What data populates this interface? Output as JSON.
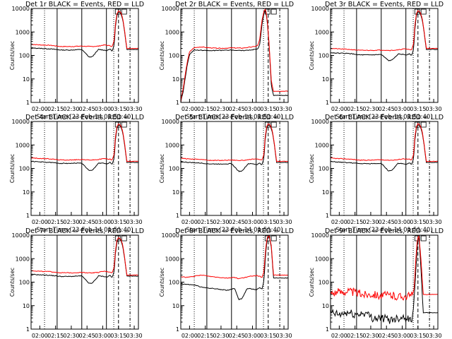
{
  "chart_data": {
    "type": "line",
    "xtick_labels": [
      "02:00",
      "02:15",
      "02:30",
      "02:45",
      "03:00",
      "03:15",
      "03:30"
    ],
    "xtick_minutes": [
      120,
      135,
      150,
      165,
      180,
      195,
      210
    ],
    "xlim_minutes": [
      111.67,
      214
    ],
    "ylim": [
      1,
      10000
    ],
    "yscale": "log",
    "ytick_labels": [
      "1",
      "10",
      "100",
      "1000",
      "10000"
    ],
    "ytick_values": [
      1,
      10,
      100,
      1000,
      10000
    ],
    "ylabel": "Counts/sec",
    "xlabel": "Start Time (23-Feb-14 01:51:40)",
    "colors": {
      "events": "#000000",
      "lld": "#ff0000"
    },
    "panels": [
      {
        "title": "Det 1r BLACK = Events, RED = LLD",
        "type": "A",
        "times": [
          111.67,
          120,
          130,
          140,
          150,
          160,
          167,
          170,
          176,
          181,
          184,
          187,
          189,
          191,
          192,
          193.5,
          195,
          197,
          199,
          201,
          203
        ],
        "events": [
          210,
          200,
          190,
          170,
          170,
          180,
          85,
          88,
          180,
          170,
          160,
          190,
          150,
          300,
          1500,
          5000,
          7000,
          6500,
          3500,
          900,
          180
        ],
        "lld": [
          300,
          280,
          270,
          240,
          240,
          250,
          240,
          240,
          250,
          280,
          270,
          260,
          240,
          450,
          2000,
          6000,
          8000,
          7000,
          4000,
          1000,
          200
        ]
      },
      {
        "title": "Det 2r BLACK = Events, RED = LLD",
        "type": "B",
        "times": [
          111.67,
          112,
          114,
          116,
          118,
          120,
          124,
          130,
          140,
          150,
          160,
          170,
          180,
          185,
          187,
          189,
          191,
          192.5,
          194,
          196,
          198,
          200
        ],
        "events": [
          1,
          1.3,
          3,
          12,
          45,
          110,
          170,
          165,
          160,
          165,
          170,
          160,
          175,
          190,
          300,
          2000,
          6500,
          8500,
          3000,
          200,
          5,
          2
        ],
        "lld": [
          1,
          1.5,
          4,
          16,
          60,
          140,
          210,
          230,
          210,
          200,
          210,
          205,
          230,
          260,
          500,
          3000,
          8000,
          9500,
          3500,
          250,
          8,
          3
        ]
      },
      {
        "title": "Det 3r BLACK = Events, RED = LLD",
        "type": "A",
        "times": [
          111.67,
          120,
          130,
          140,
          150,
          160,
          167,
          170,
          176,
          181,
          184,
          187,
          189,
          191,
          192,
          193.5,
          195,
          197,
          199,
          201,
          203
        ],
        "events": [
          130,
          125,
          120,
          105,
          105,
          110,
          60,
          62,
          115,
          110,
          105,
          120,
          100,
          200,
          1200,
          5000,
          7000,
          6500,
          3500,
          900,
          180
        ],
        "lld": [
          200,
          190,
          180,
          165,
          165,
          170,
          165,
          165,
          170,
          190,
          185,
          180,
          170,
          350,
          1800,
          6000,
          8000,
          7000,
          4000,
          1000,
          200
        ]
      },
      {
        "title": "Det 4r BLACK = Events, RED = LLD",
        "type": "A",
        "times": [
          111.67,
          120,
          130,
          140,
          150,
          160,
          167,
          170,
          176,
          181,
          184,
          187,
          189,
          191,
          192,
          193.5,
          195,
          197,
          199,
          201,
          203
        ],
        "events": [
          200,
          190,
          180,
          165,
          165,
          170,
          80,
          82,
          170,
          165,
          155,
          180,
          145,
          290,
          1500,
          5000,
          7000,
          6500,
          3500,
          900,
          180
        ],
        "lld": [
          280,
          265,
          255,
          230,
          230,
          240,
          230,
          230,
          240,
          265,
          255,
          250,
          230,
          430,
          2000,
          6000,
          8000,
          7000,
          4000,
          1000,
          200
        ]
      },
      {
        "title": "Det 5r BLACK = Events, RED = LLD",
        "type": "A",
        "times": [
          111.67,
          120,
          130,
          140,
          150,
          160,
          167,
          170,
          176,
          181,
          184,
          187,
          189,
          191,
          192,
          193.5,
          195,
          197,
          199,
          201,
          203
        ],
        "events": [
          190,
          180,
          170,
          155,
          155,
          160,
          75,
          78,
          160,
          155,
          145,
          170,
          140,
          280,
          1500,
          5000,
          7000,
          6500,
          3500,
          900,
          180
        ],
        "lld": [
          270,
          255,
          245,
          220,
          220,
          230,
          220,
          220,
          230,
          255,
          245,
          240,
          220,
          420,
          2000,
          6000,
          8000,
          7000,
          4000,
          1000,
          200
        ]
      },
      {
        "title": "Det 6r BLACK = Events, RED = LLD",
        "type": "A",
        "times": [
          111.67,
          120,
          130,
          140,
          150,
          160,
          167,
          170,
          176,
          181,
          184,
          187,
          189,
          191,
          192,
          193.5,
          195,
          197,
          199,
          201,
          203
        ],
        "events": [
          195,
          185,
          175,
          160,
          160,
          165,
          78,
          80,
          165,
          160,
          150,
          175,
          142,
          285,
          1500,
          5000,
          7000,
          6500,
          3500,
          900,
          180
        ],
        "lld": [
          275,
          260,
          250,
          225,
          225,
          235,
          225,
          225,
          235,
          260,
          250,
          245,
          225,
          425,
          2000,
          6000,
          8000,
          7000,
          4000,
          1000,
          200
        ]
      },
      {
        "title": "Det 7r BLACK = Events, RED = LLD",
        "type": "A",
        "times": [
          111.67,
          120,
          130,
          140,
          150,
          160,
          167,
          170,
          176,
          181,
          184,
          187,
          189,
          191,
          192,
          193.5,
          195,
          197,
          199,
          201,
          203
        ],
        "events": [
          215,
          205,
          195,
          175,
          175,
          185,
          88,
          90,
          185,
          175,
          165,
          195,
          155,
          310,
          1500,
          5000,
          7000,
          6500,
          3500,
          900,
          180
        ],
        "lld": [
          310,
          290,
          280,
          250,
          250,
          260,
          250,
          250,
          260,
          290,
          280,
          270,
          250,
          460,
          2000,
          6000,
          8000,
          7000,
          4000,
          1000,
          200
        ]
      },
      {
        "title": "Det 8r BLACK = Events, RED = LLD",
        "type": "C",
        "times": [
          111.67,
          118,
          125,
          132,
          140,
          148,
          156,
          163,
          167,
          170,
          175,
          180,
          184,
          187,
          189,
          191,
          192.5,
          194,
          196,
          198,
          200
        ],
        "events": [
          85,
          80,
          75,
          60,
          55,
          50,
          45,
          55,
          18,
          20,
          55,
          50,
          48,
          60,
          50,
          120,
          1500,
          7000,
          9000,
          3000,
          150
        ],
        "lld": [
          170,
          160,
          180,
          200,
          175,
          160,
          150,
          160,
          140,
          150,
          165,
          185,
          190,
          175,
          150,
          300,
          2500,
          8000,
          9500,
          3500,
          200
        ]
      },
      {
        "title": "Det 9r BLACK = Events, RED = LLD",
        "type": "D",
        "times": [
          111.67,
          120,
          128,
          136,
          144,
          152,
          160,
          168,
          176,
          182,
          187,
          190,
          191.5,
          193,
          194.5,
          196,
          198,
          200
        ],
        "events": [
          5,
          4,
          5,
          4,
          5,
          3,
          3,
          2.5,
          3,
          3.5,
          2.5,
          3,
          25,
          300,
          5000,
          9000,
          300,
          5
        ],
        "lld": [
          35,
          38,
          42,
          35,
          30,
          32,
          26,
          28,
          24,
          26,
          25,
          30,
          60,
          1000,
          7000,
          9500,
          800,
          30
        ]
      }
    ]
  }
}
